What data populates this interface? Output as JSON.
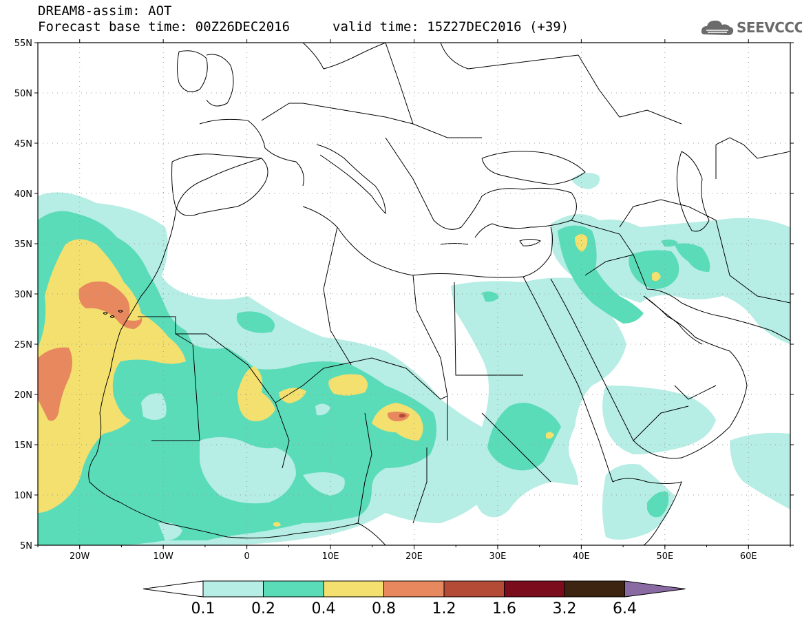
{
  "header": {
    "title": "DREAM8-assim: AOT",
    "base_time": "Forecast base time: 00Z26DEC2016",
    "valid_time": "valid time: 15Z27DEC2016 (+39)"
  },
  "logo": {
    "text": "SEEVCCC",
    "icon": "cloud-icon"
  },
  "map": {
    "lon_range": [
      -25,
      65
    ],
    "lat_range": [
      5,
      55
    ],
    "lat_labels": [
      "55N",
      "50N",
      "45N",
      "40N",
      "35N",
      "30N",
      "25N",
      "20N",
      "15N",
      "10N",
      "5N"
    ],
    "lon_labels": [
      "20W",
      "10W",
      "0",
      "10E",
      "20E",
      "30E",
      "40E",
      "50E",
      "60E"
    ],
    "grid": "dotted"
  },
  "colorbar": {
    "labels": [
      "0.1",
      "0.2",
      "0.4",
      "0.8",
      "1.2",
      "1.6",
      "3.2",
      "6.4"
    ],
    "colors": [
      "#ffffff",
      "#b6ede4",
      "#5bdcb8",
      "#f3e06e",
      "#e8885f",
      "#b44b37",
      "#7a0c1c",
      "#3d2410",
      "#8a6aa3"
    ]
  },
  "palette": {
    "c01": "#b6ede4",
    "c02": "#5bdcb8",
    "c04": "#f3e06e",
    "c08": "#e8885f",
    "c12": "#b44b37"
  }
}
